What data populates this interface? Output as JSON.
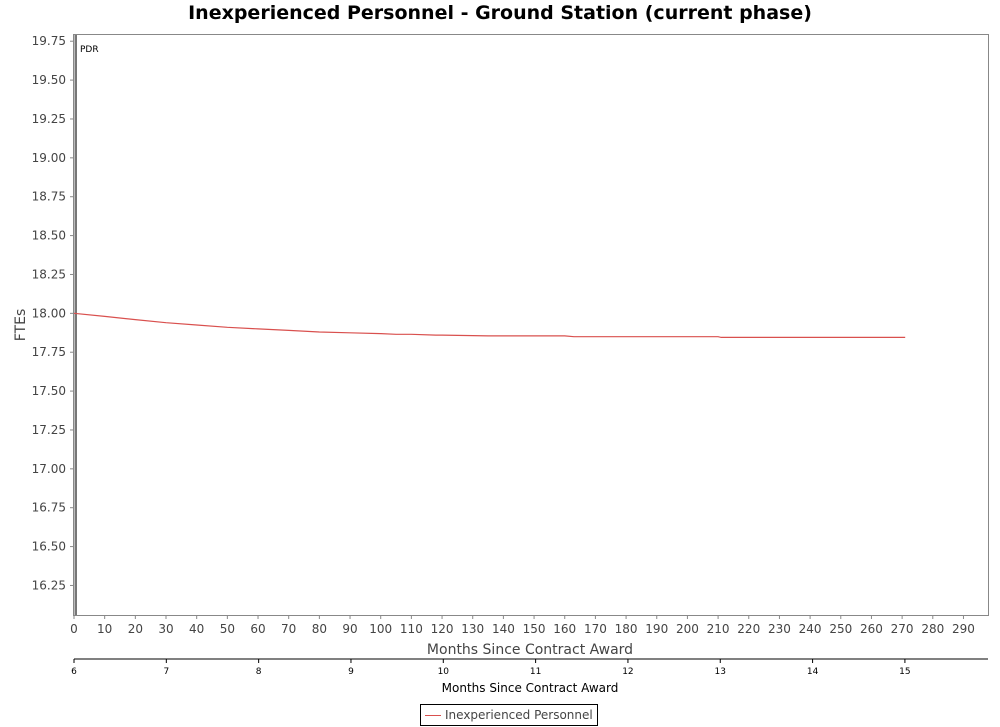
{
  "chart_data": {
    "type": "line",
    "title": "Inexperienced Personnel - Ground Station (current phase)",
    "ylabel": "FTEs",
    "xlabel": "Months Since Contract Award",
    "x2label": "Months Since Contract Award",
    "ylim": [
      16.06,
      19.79
    ],
    "xlim": [
      0,
      298
    ],
    "x2lim": [
      6,
      15.9
    ],
    "yticks": [
      "16.25",
      "16.50",
      "16.75",
      "17.00",
      "17.25",
      "17.50",
      "17.75",
      "18.00",
      "18.25",
      "18.50",
      "18.75",
      "19.00",
      "19.25",
      "19.50",
      "19.75"
    ],
    "xticks": [
      "0",
      "10",
      "20",
      "30",
      "40",
      "50",
      "60",
      "70",
      "80",
      "90",
      "100",
      "110",
      "120",
      "130",
      "140",
      "150",
      "160",
      "170",
      "180",
      "190",
      "200",
      "210",
      "220",
      "230",
      "240",
      "250",
      "260",
      "270",
      "280",
      "290"
    ],
    "x2ticks": [
      "6",
      "7",
      "8",
      "9",
      "10",
      "11",
      "12",
      "13",
      "14",
      "15"
    ],
    "marker": {
      "label": "PDR",
      "x": 0
    },
    "grid": false,
    "legend_position": "bottom-center",
    "series": [
      {
        "name": "Inexperienced Personnel",
        "color": "#d9504e",
        "x": [
          0,
          10,
          20,
          30,
          40,
          50,
          60,
          70,
          80,
          90,
          100,
          105,
          110,
          118,
          120,
          135,
          140,
          150,
          160,
          163,
          170,
          180,
          200,
          210,
          211,
          220,
          240,
          260,
          271
        ],
        "y": [
          18.0,
          17.98,
          17.96,
          17.94,
          17.925,
          17.91,
          17.9,
          17.89,
          17.88,
          17.875,
          17.87,
          17.865,
          17.865,
          17.86,
          17.86,
          17.855,
          17.855,
          17.855,
          17.855,
          17.85,
          17.85,
          17.85,
          17.85,
          17.85,
          17.845,
          17.845,
          17.845,
          17.845,
          17.845
        ]
      }
    ]
  },
  "legend": {
    "label": "Inexperienced Personnel",
    "color": "#d9504e"
  }
}
